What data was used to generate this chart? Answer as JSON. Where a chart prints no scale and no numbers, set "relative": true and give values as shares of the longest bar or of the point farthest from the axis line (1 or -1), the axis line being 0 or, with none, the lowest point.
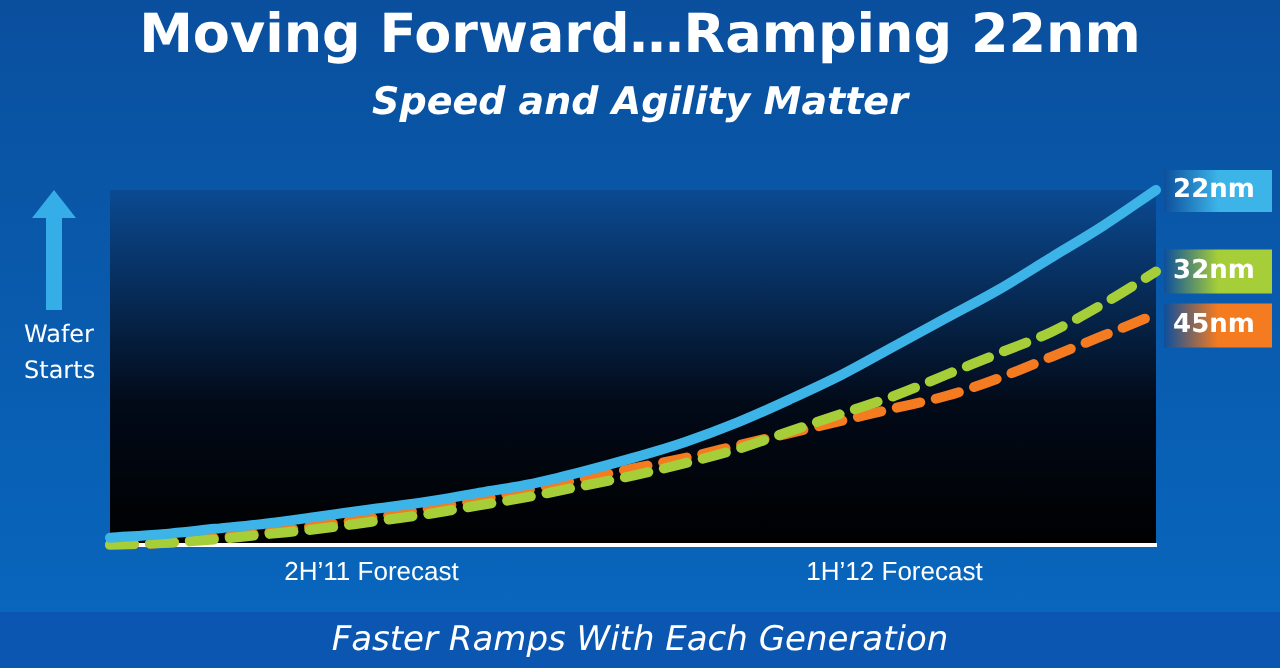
{
  "chart_data": {
    "type": "line",
    "title": "Moving Forward…Ramping 22nm",
    "subtitle": "Speed and Agility Matter",
    "ylabel": "Wafer Starts",
    "annotations": [
      "Faster Ramps With Each Generation"
    ],
    "relative": true,
    "legend": "right",
    "marker": "none",
    "grid": false,
    "categories": [
      null,
      null,
      null,
      null,
      null,
      "2H’11 Forecast",
      null,
      null,
      null,
      null,
      null,
      null,
      null,
      null,
      null,
      "1H’12 Forecast",
      null,
      null,
      null,
      null,
      null
    ],
    "series": [
      {
        "name": "22nm",
        "color": "#3cb4e8",
        "line_style": "solid",
        "values": [
          0.02,
          0.03,
          0.045,
          0.06,
          0.08,
          0.1,
          0.12,
          0.145,
          0.17,
          0.205,
          0.245,
          0.29,
          0.345,
          0.41,
          0.48,
          0.56,
          0.64,
          0.72,
          0.81,
          0.9,
          1.0
        ]
      },
      {
        "name": "32nm",
        "color": "#a6ce39",
        "line_style": "dashed",
        "values": [
          0,
          0.005,
          0.015,
          0.03,
          0.045,
          0.065,
          0.085,
          0.11,
          0.135,
          0.165,
          0.195,
          0.23,
          0.27,
          0.32,
          0.37,
          0.42,
          0.48,
          0.54,
          0.6,
          0.68,
          0.77
        ]
      },
      {
        "name": "45nm",
        "color": "#f47b20",
        "line_style": "dashed",
        "values": [
          0,
          0.005,
          0.02,
          0.035,
          0.055,
          0.075,
          0.1,
          0.125,
          0.155,
          0.185,
          0.215,
          0.245,
          0.28,
          0.315,
          0.35,
          0.385,
          0.42,
          0.47,
          0.53,
          0.59,
          0.65
        ]
      }
    ]
  }
}
